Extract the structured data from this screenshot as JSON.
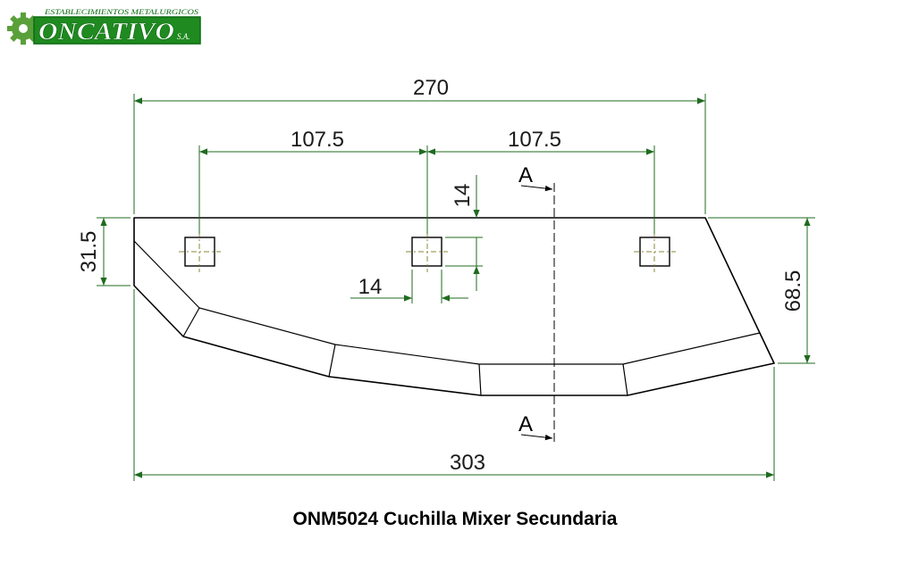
{
  "logo": {
    "top_text": "ESTABLECIMIENTOS METALURGICOS",
    "main_text": "ONCATIVO",
    "suffix_text": "S.A.",
    "colors": {
      "green": "#1f8a1f",
      "dark_green": "#0b6b12",
      "gear": "#5aa03a"
    },
    "icon": "gear-icon"
  },
  "dimensions": {
    "overall_top": "270",
    "hole_spacing_left": "107.5",
    "hole_spacing_right": "107.5",
    "hole_offset_top": "14",
    "hole_width": "14",
    "left_edge_height": "31.5",
    "right_edge_height": "68.5",
    "overall_bottom": "303"
  },
  "section": {
    "top_label": "A",
    "bottom_label": "A"
  },
  "caption": "ONM5024 Cuchilla Mixer Secundaria",
  "colors": {
    "dimension_line": "#1f6b1f",
    "outline": "#000000",
    "hole_center": "#8a8a3a"
  }
}
